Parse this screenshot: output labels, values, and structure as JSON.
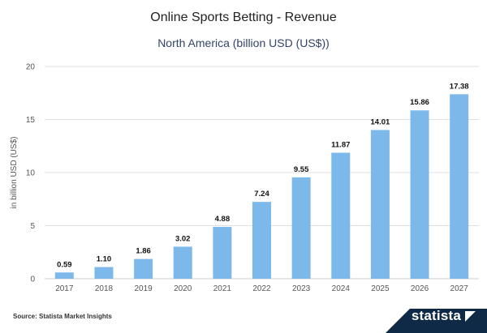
{
  "header": {
    "title": "Online Sports Betting - Revenue",
    "subtitle": "North America (billion USD (US$))"
  },
  "footer": {
    "source_label": "Source:",
    "source_value": "Statista Market Insights",
    "brand": "statista"
  },
  "colors": {
    "bar": "#7cb9ea",
    "grid": "#e0e0e0",
    "footer_band": "#0f2a47"
  },
  "chart_data": {
    "type": "bar",
    "title": "Online Sports Betting - Revenue",
    "subtitle": "North America (billion USD (US$))",
    "categories": [
      "2017",
      "2018",
      "2019",
      "2020",
      "2021",
      "2022",
      "2023",
      "2024",
      "2025",
      "2026",
      "2027"
    ],
    "values": [
      0.59,
      1.1,
      1.86,
      3.02,
      4.88,
      7.24,
      9.55,
      11.87,
      14.01,
      15.86,
      17.38
    ],
    "value_labels": [
      "0.59",
      "1.10",
      "1.86",
      "3.02",
      "4.88",
      "7.24",
      "9.55",
      "11.87",
      "14.01",
      "15.86",
      "17.38"
    ],
    "xlabel": "",
    "ylabel": "in billion USD (US$)",
    "ylim": [
      0,
      20
    ],
    "yticks": [
      0,
      5,
      10,
      15,
      20
    ],
    "grid": true,
    "legend": "none"
  }
}
